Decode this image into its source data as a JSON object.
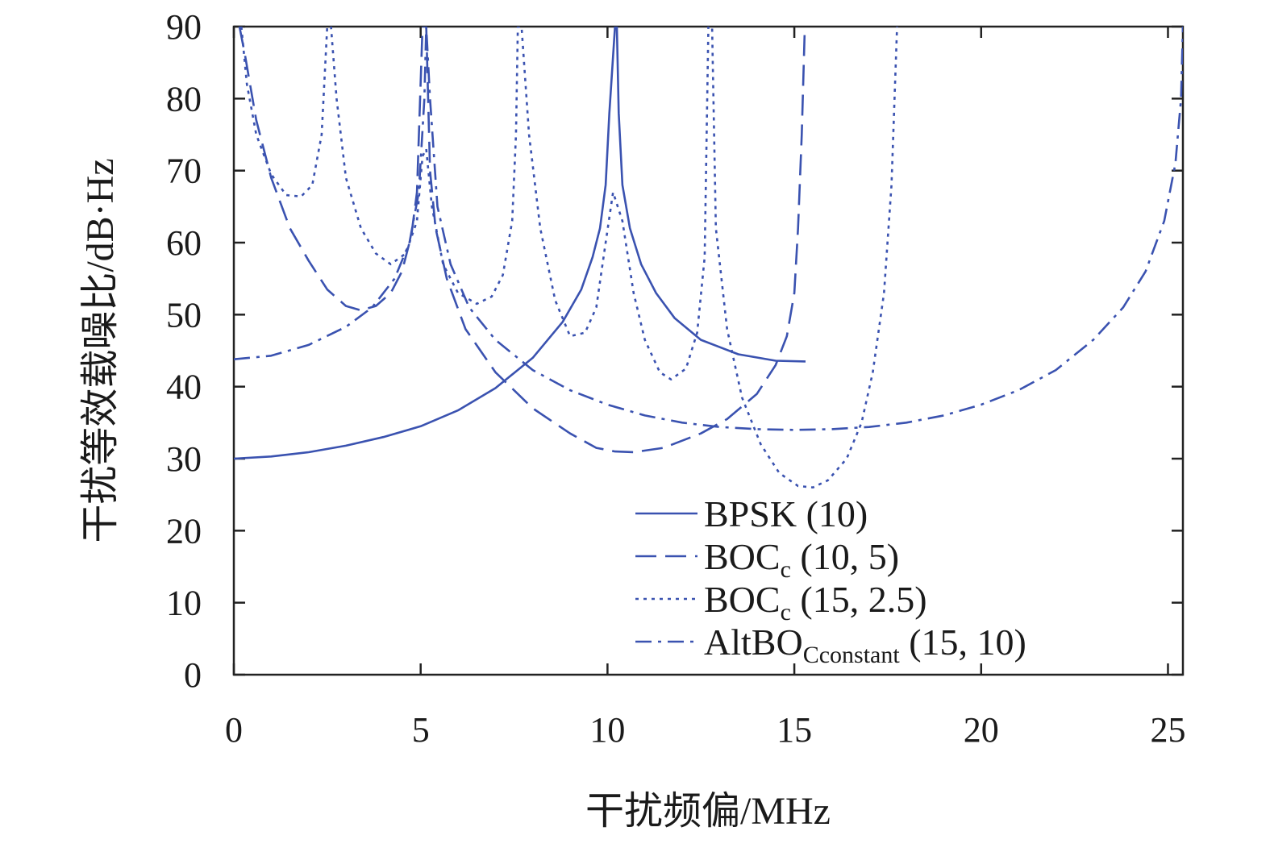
{
  "chart_data": {
    "type": "line",
    "title": "",
    "xlabel": "干扰频偏/MHz",
    "ylabel": "干扰等效载噪比/dB·Hz",
    "xlim": [
      0,
      25.4
    ],
    "ylim": [
      0,
      90
    ],
    "xticks": [
      0,
      5,
      10,
      15,
      20,
      25
    ],
    "yticks": [
      0,
      10,
      20,
      30,
      40,
      50,
      60,
      70,
      80,
      90
    ],
    "grid": false,
    "legend_position": "bottom-right",
    "line_color": "#3a52b0",
    "series": [
      {
        "name": "BPSK (10)",
        "legend_main": "BPSK (10)",
        "legend_sub": "",
        "legend_tail": "",
        "dash": "solid",
        "points": [
          [
            0.0,
            30.0
          ],
          [
            1.0,
            30.3
          ],
          [
            2.0,
            30.9
          ],
          [
            3.0,
            31.8
          ],
          [
            4.0,
            33.0
          ],
          [
            5.0,
            34.5
          ],
          [
            6.0,
            36.7
          ],
          [
            7.0,
            39.8
          ],
          [
            8.0,
            44.0
          ],
          [
            8.8,
            49.0
          ],
          [
            9.3,
            53.5
          ],
          [
            9.6,
            58.0
          ],
          [
            9.8,
            62.0
          ],
          [
            9.95,
            68.0
          ],
          [
            10.05,
            78.0
          ],
          [
            10.2,
            90.0
          ],
          [
            10.25,
            90.0
          ],
          [
            10.3,
            78.0
          ],
          [
            10.4,
            68.0
          ],
          [
            10.6,
            62.0
          ],
          [
            10.9,
            57.0
          ],
          [
            11.3,
            53.0
          ],
          [
            11.8,
            49.5
          ],
          [
            12.5,
            46.5
          ],
          [
            13.5,
            44.5
          ],
          [
            14.5,
            43.6
          ],
          [
            15.3,
            43.5
          ]
        ]
      },
      {
        "name": "BOCc (10, 5)",
        "legend_main": "BOC",
        "legend_sub": "c",
        "legend_tail": " (10, 5)",
        "dash": "dashed",
        "points": [
          [
            0.15,
            90.0
          ],
          [
            0.3,
            86.0
          ],
          [
            0.6,
            77.0
          ],
          [
            1.0,
            69.0
          ],
          [
            1.5,
            62.0
          ],
          [
            2.0,
            57.5
          ],
          [
            2.5,
            53.5
          ],
          [
            3.0,
            51.2
          ],
          [
            3.4,
            50.6
          ],
          [
            3.8,
            51.2
          ],
          [
            4.2,
            53.0
          ],
          [
            4.5,
            56.0
          ],
          [
            4.75,
            61.0
          ],
          [
            4.9,
            67.0
          ],
          [
            5.05,
            90.0
          ],
          [
            5.15,
            90.0
          ],
          [
            5.25,
            70.0
          ],
          [
            5.4,
            62.0
          ],
          [
            5.7,
            55.0
          ],
          [
            6.2,
            48.0
          ],
          [
            7.0,
            42.0
          ],
          [
            8.0,
            37.0
          ],
          [
            9.0,
            33.5
          ],
          [
            9.7,
            31.5
          ],
          [
            10.2,
            31.0
          ],
          [
            10.7,
            30.9
          ],
          [
            11.5,
            31.5
          ],
          [
            12.5,
            33.5
          ],
          [
            13.2,
            35.5
          ],
          [
            14.0,
            39.0
          ],
          [
            14.5,
            43.0
          ],
          [
            14.8,
            47.0
          ],
          [
            15.0,
            53.0
          ],
          [
            15.1,
            62.0
          ],
          [
            15.2,
            75.0
          ],
          [
            15.28,
            90.0
          ]
        ]
      },
      {
        "name": "BOCc (15, 2.5)",
        "legend_main": "BOC",
        "legend_sub": "c",
        "legend_tail": " (15, 2.5)",
        "dash": "dotted",
        "points": [
          [
            0.2,
            90.0
          ],
          [
            0.35,
            82.0
          ],
          [
            0.6,
            75.0
          ],
          [
            1.0,
            69.5
          ],
          [
            1.4,
            66.6
          ],
          [
            1.8,
            66.4
          ],
          [
            2.1,
            68.0
          ],
          [
            2.35,
            75.0
          ],
          [
            2.5,
            90.0
          ],
          [
            2.6,
            90.0
          ],
          [
            2.75,
            80.0
          ],
          [
            3.0,
            69.0
          ],
          [
            3.4,
            62.0
          ],
          [
            3.8,
            58.5
          ],
          [
            4.2,
            57.0
          ],
          [
            4.6,
            58.5
          ],
          [
            4.9,
            63.0
          ],
          [
            5.05,
            72.0
          ],
          [
            5.15,
            73.0
          ],
          [
            5.3,
            65.0
          ],
          [
            5.6,
            57.0
          ],
          [
            6.0,
            53.0
          ],
          [
            6.5,
            51.5
          ],
          [
            6.9,
            52.5
          ],
          [
            7.2,
            55.5
          ],
          [
            7.45,
            63.0
          ],
          [
            7.55,
            75.0
          ],
          [
            7.6,
            90.0
          ],
          [
            7.7,
            90.0
          ],
          [
            7.9,
            75.0
          ],
          [
            8.2,
            62.0
          ],
          [
            8.6,
            52.0
          ],
          [
            9.0,
            47.0
          ],
          [
            9.4,
            47.5
          ],
          [
            9.7,
            51.0
          ],
          [
            9.95,
            60.0
          ],
          [
            10.15,
            67.0
          ],
          [
            10.4,
            63.0
          ],
          [
            10.7,
            53.0
          ],
          [
            11.0,
            46.5
          ],
          [
            11.4,
            42.0
          ],
          [
            11.7,
            41.0
          ],
          [
            12.1,
            42.5
          ],
          [
            12.4,
            47.5
          ],
          [
            12.6,
            58.0
          ],
          [
            12.7,
            90.0
          ],
          [
            12.8,
            90.0
          ],
          [
            12.9,
            62.0
          ],
          [
            13.2,
            48.0
          ],
          [
            13.6,
            38.5
          ],
          [
            14.1,
            32.0
          ],
          [
            14.6,
            28.0
          ],
          [
            15.1,
            26.2
          ],
          [
            15.5,
            26.0
          ],
          [
            15.9,
            27.0
          ],
          [
            16.4,
            30.0
          ],
          [
            16.8,
            35.0
          ],
          [
            17.1,
            42.0
          ],
          [
            17.4,
            53.0
          ],
          [
            17.6,
            68.0
          ],
          [
            17.75,
            90.0
          ]
        ]
      },
      {
        "name": "AltBOCconstant (15, 10)",
        "legend_main": "AltBO",
        "legend_sub": "Cconstant",
        "legend_tail": " (15, 10)",
        "dash": "dashdot",
        "points": [
          [
            0.0,
            43.8
          ],
          [
            1.0,
            44.3
          ],
          [
            2.0,
            45.8
          ],
          [
            3.0,
            48.3
          ],
          [
            3.7,
            51.0
          ],
          [
            4.3,
            55.0
          ],
          [
            4.7,
            60.0
          ],
          [
            4.95,
            67.0
          ],
          [
            5.1,
            80.0
          ],
          [
            5.15,
            90.0
          ],
          [
            5.25,
            80.0
          ],
          [
            5.45,
            65.0
          ],
          [
            5.8,
            57.0
          ],
          [
            6.3,
            51.0
          ],
          [
            7.0,
            46.5
          ],
          [
            8.0,
            42.3
          ],
          [
            9.0,
            39.5
          ],
          [
            10.0,
            37.5
          ],
          [
            11.0,
            36.0
          ],
          [
            12.0,
            35.0
          ],
          [
            13.0,
            34.4
          ],
          [
            14.0,
            34.1
          ],
          [
            15.0,
            34.0
          ],
          [
            16.0,
            34.1
          ],
          [
            17.0,
            34.4
          ],
          [
            18.0,
            35.0
          ],
          [
            19.0,
            36.0
          ],
          [
            20.0,
            37.5
          ],
          [
            21.0,
            39.5
          ],
          [
            22.0,
            42.3
          ],
          [
            23.0,
            46.5
          ],
          [
            23.8,
            51.0
          ],
          [
            24.4,
            56.0
          ],
          [
            24.9,
            63.0
          ],
          [
            25.2,
            71.0
          ],
          [
            25.35,
            80.0
          ],
          [
            25.4,
            90.0
          ]
        ]
      }
    ]
  }
}
